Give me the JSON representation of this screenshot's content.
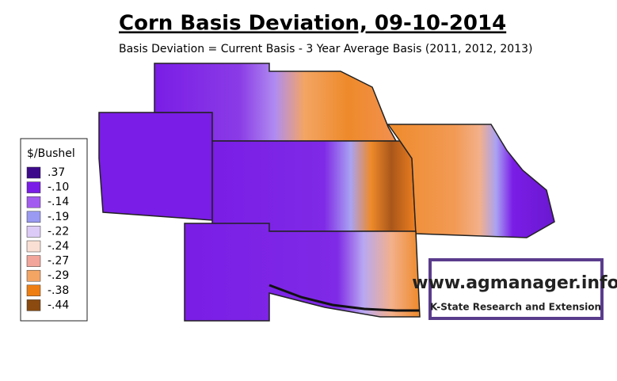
{
  "header": {
    "title": "Corn Basis Deviation, 09-10-2014",
    "subtitle": "Basis Deviation = Current Basis - 3 Year Average Basis (2011, 2012, 2013)"
  },
  "legend": {
    "title": "$/Bushel",
    "items": [
      {
        "label": ".37",
        "color": "#3d0a8c"
      },
      {
        "label": "-.10",
        "color": "#7a1de6"
      },
      {
        "label": "-.14",
        "color": "#a35cf0"
      },
      {
        "label": "-.19",
        "color": "#9a9af2"
      },
      {
        "label": "-.22",
        "color": "#dccbf6"
      },
      {
        "label": "-.24",
        "color": "#fae0d4"
      },
      {
        "label": "-.27",
        "color": "#f2a59a"
      },
      {
        "label": "-.29",
        "color": "#f3a564"
      },
      {
        "label": "-.38",
        "color": "#ee7e12"
      },
      {
        "label": "-.44",
        "color": "#8a4a10"
      }
    ]
  },
  "logo": {
    "url": "www.agmanager.info",
    "org": "K-State Research and Extension"
  }
}
